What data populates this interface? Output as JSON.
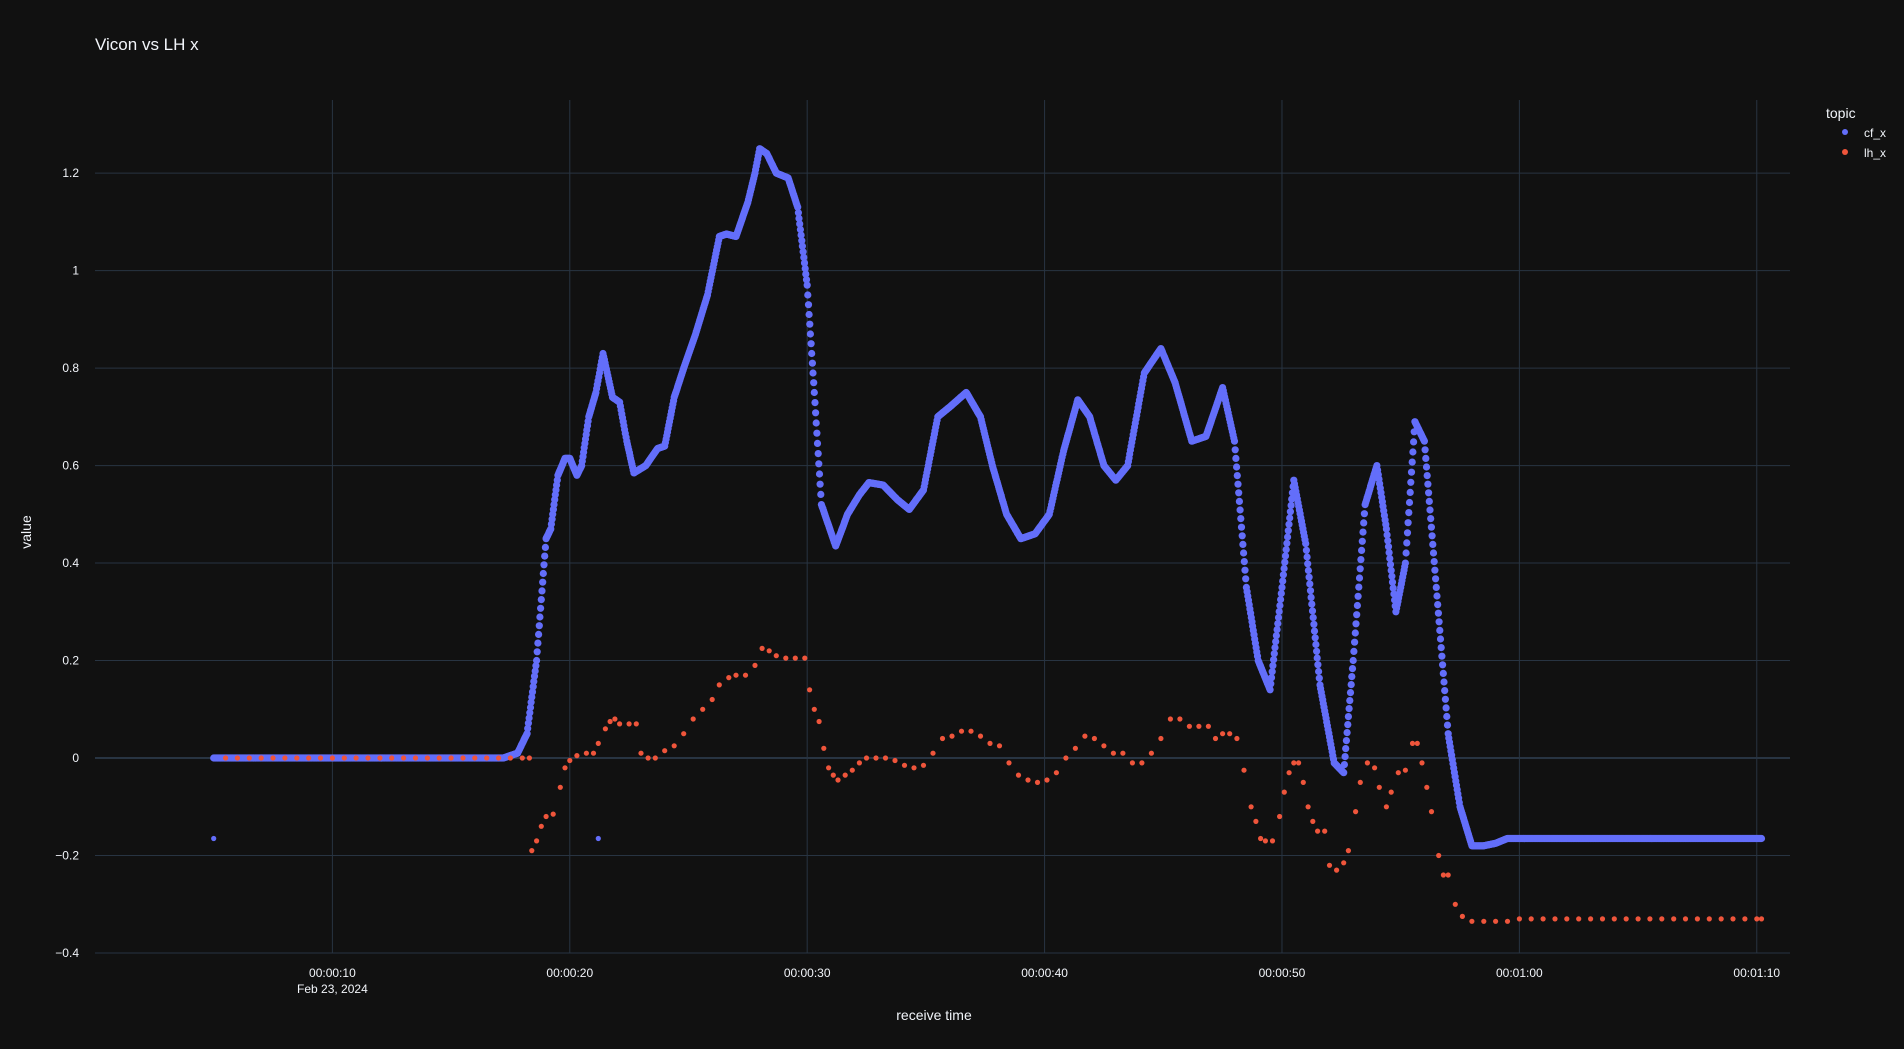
{
  "chart_data": {
    "type": "scatter",
    "title": "Vicon vs LH x",
    "xlabel": "receive time",
    "ylabel": "value",
    "x_unit": "seconds",
    "xlim": [
      0,
      71.4
    ],
    "ylim": [
      -0.4,
      1.35
    ],
    "x_ticks": [
      {
        "value": 10,
        "label": "00:00:10",
        "sublabel": "Feb 23, 2024"
      },
      {
        "value": 20,
        "label": "00:00:20",
        "sublabel": ""
      },
      {
        "value": 30,
        "label": "00:00:30",
        "sublabel": ""
      },
      {
        "value": 40,
        "label": "00:00:40",
        "sublabel": ""
      },
      {
        "value": 50,
        "label": "00:00:50",
        "sublabel": ""
      },
      {
        "value": 60,
        "label": "00:01:00",
        "sublabel": ""
      },
      {
        "value": 70,
        "label": "00:01:10",
        "sublabel": ""
      }
    ],
    "y_ticks": [
      {
        "value": -0.4,
        "label": "−0.4"
      },
      {
        "value": -0.2,
        "label": "−0.2"
      },
      {
        "value": 0,
        "label": "0"
      },
      {
        "value": 0.2,
        "label": "0.2"
      },
      {
        "value": 0.4,
        "label": "0.4"
      },
      {
        "value": 0.6,
        "label": "0.6"
      },
      {
        "value": 0.8,
        "label": "0.8"
      },
      {
        "value": 1,
        "label": "1"
      },
      {
        "value": 1.2,
        "label": "1.2"
      }
    ],
    "grid": true,
    "legend": {
      "title": "topic",
      "position": "top-right"
    },
    "series": [
      {
        "name": "cf_x",
        "color": "#636efa",
        "mode": "dense-markers",
        "points": [
          [
            5.0,
            0.0
          ],
          [
            6.0,
            0.0
          ],
          [
            8.0,
            0.0
          ],
          [
            10.0,
            0.0
          ],
          [
            12.0,
            0.0
          ],
          [
            14.0,
            0.0
          ],
          [
            16.0,
            0.0
          ],
          [
            17.2,
            0.0
          ],
          [
            17.8,
            0.01
          ],
          [
            18.2,
            0.05
          ],
          [
            18.6,
            0.2
          ],
          [
            19.0,
            0.45
          ],
          [
            19.2,
            0.47
          ],
          [
            19.5,
            0.58
          ],
          [
            19.8,
            0.615
          ],
          [
            20.0,
            0.615
          ],
          [
            20.3,
            0.58
          ],
          [
            20.5,
            0.6
          ],
          [
            20.8,
            0.7
          ],
          [
            21.1,
            0.75
          ],
          [
            21.4,
            0.83
          ],
          [
            21.8,
            0.74
          ],
          [
            22.1,
            0.73
          ],
          [
            22.4,
            0.65
          ],
          [
            22.7,
            0.585
          ],
          [
            23.2,
            0.6
          ],
          [
            23.7,
            0.635
          ],
          [
            24.0,
            0.64
          ],
          [
            24.4,
            0.74
          ],
          [
            24.8,
            0.8
          ],
          [
            25.3,
            0.87
          ],
          [
            25.8,
            0.95
          ],
          [
            26.3,
            1.07
          ],
          [
            26.6,
            1.075
          ],
          [
            27.0,
            1.07
          ],
          [
            27.5,
            1.14
          ],
          [
            27.8,
            1.2
          ],
          [
            28.0,
            1.25
          ],
          [
            28.3,
            1.24
          ],
          [
            28.7,
            1.2
          ],
          [
            29.2,
            1.19
          ],
          [
            29.6,
            1.13
          ],
          [
            30.0,
            0.97
          ],
          [
            30.3,
            0.75
          ],
          [
            30.6,
            0.52
          ],
          [
            31.2,
            0.435
          ],
          [
            31.7,
            0.5
          ],
          [
            32.2,
            0.54
          ],
          [
            32.6,
            0.565
          ],
          [
            33.2,
            0.56
          ],
          [
            33.8,
            0.53
          ],
          [
            34.3,
            0.51
          ],
          [
            34.9,
            0.55
          ],
          [
            35.5,
            0.7
          ],
          [
            36.0,
            0.72
          ],
          [
            36.7,
            0.75
          ],
          [
            37.3,
            0.7
          ],
          [
            37.8,
            0.6
          ],
          [
            38.4,
            0.5
          ],
          [
            39.0,
            0.45
          ],
          [
            39.6,
            0.46
          ],
          [
            40.2,
            0.5
          ],
          [
            40.8,
            0.63
          ],
          [
            41.4,
            0.735
          ],
          [
            41.9,
            0.7
          ],
          [
            42.5,
            0.6
          ],
          [
            43.0,
            0.57
          ],
          [
            43.5,
            0.6
          ],
          [
            44.2,
            0.79
          ],
          [
            44.9,
            0.84
          ],
          [
            45.5,
            0.77
          ],
          [
            46.2,
            0.65
          ],
          [
            46.8,
            0.66
          ],
          [
            47.5,
            0.76
          ],
          [
            48.0,
            0.65
          ],
          [
            48.5,
            0.35
          ],
          [
            49.0,
            0.2
          ],
          [
            49.5,
            0.14
          ],
          [
            50.0,
            0.35
          ],
          [
            50.5,
            0.57
          ],
          [
            51.0,
            0.44
          ],
          [
            51.6,
            0.15
          ],
          [
            52.2,
            -0.01
          ],
          [
            52.6,
            -0.03
          ],
          [
            53.0,
            0.2
          ],
          [
            53.5,
            0.52
          ],
          [
            54.0,
            0.6
          ],
          [
            54.4,
            0.47
          ],
          [
            54.8,
            0.3
          ],
          [
            55.2,
            0.4
          ],
          [
            55.6,
            0.69
          ],
          [
            56.0,
            0.65
          ],
          [
            56.5,
            0.35
          ],
          [
            57.0,
            0.05
          ],
          [
            57.5,
            -0.1
          ],
          [
            58.0,
            -0.18
          ],
          [
            58.5,
            -0.18
          ],
          [
            59.0,
            -0.175
          ],
          [
            59.5,
            -0.165
          ],
          [
            60.0,
            -0.165
          ],
          [
            62.0,
            -0.165
          ],
          [
            64.0,
            -0.165
          ],
          [
            66.0,
            -0.165
          ],
          [
            68.0,
            -0.165
          ],
          [
            70.2,
            -0.165
          ]
        ],
        "outliers": [
          [
            5.0,
            -0.165
          ],
          [
            21.2,
            -0.165
          ]
        ]
      },
      {
        "name": "lh_x",
        "color": "#ef553b",
        "mode": "markers",
        "points": [
          [
            5.5,
            0.0
          ],
          [
            6.0,
            0.0
          ],
          [
            6.5,
            0.0
          ],
          [
            7.0,
            0.0
          ],
          [
            7.5,
            0.0
          ],
          [
            8.0,
            0.0
          ],
          [
            8.5,
            0.0
          ],
          [
            9.0,
            0.0
          ],
          [
            9.5,
            0.0
          ],
          [
            10.0,
            0.0
          ],
          [
            10.5,
            0.0
          ],
          [
            11.0,
            0.0
          ],
          [
            11.5,
            0.0
          ],
          [
            12.0,
            0.0
          ],
          [
            12.5,
            0.0
          ],
          [
            13.0,
            0.0
          ],
          [
            13.5,
            0.0
          ],
          [
            14.0,
            0.0
          ],
          [
            14.5,
            0.0
          ],
          [
            15.0,
            0.0
          ],
          [
            15.5,
            0.0
          ],
          [
            16.0,
            0.0
          ],
          [
            16.5,
            0.0
          ],
          [
            17.0,
            0.0
          ],
          [
            17.5,
            0.0
          ],
          [
            18.0,
            0.0
          ],
          [
            18.3,
            0.0
          ],
          [
            18.4,
            -0.19
          ],
          [
            18.6,
            -0.17
          ],
          [
            18.8,
            -0.14
          ],
          [
            19.0,
            -0.12
          ],
          [
            19.3,
            -0.115
          ],
          [
            19.6,
            -0.06
          ],
          [
            19.8,
            -0.02
          ],
          [
            20.0,
            -0.005
          ],
          [
            20.3,
            0.005
          ],
          [
            20.7,
            0.01
          ],
          [
            21.0,
            0.01
          ],
          [
            21.2,
            0.03
          ],
          [
            21.5,
            0.06
          ],
          [
            21.7,
            0.075
          ],
          [
            21.9,
            0.08
          ],
          [
            22.1,
            0.07
          ],
          [
            22.5,
            0.07
          ],
          [
            22.8,
            0.07
          ],
          [
            23.0,
            0.01
          ],
          [
            23.3,
            0.0
          ],
          [
            23.6,
            0.0
          ],
          [
            24.0,
            0.015
          ],
          [
            24.4,
            0.025
          ],
          [
            24.8,
            0.05
          ],
          [
            25.2,
            0.08
          ],
          [
            25.6,
            0.1
          ],
          [
            26.0,
            0.12
          ],
          [
            26.3,
            0.15
          ],
          [
            26.7,
            0.165
          ],
          [
            27.0,
            0.17
          ],
          [
            27.4,
            0.17
          ],
          [
            27.8,
            0.19
          ],
          [
            28.1,
            0.225
          ],
          [
            28.4,
            0.22
          ],
          [
            28.7,
            0.21
          ],
          [
            29.1,
            0.205
          ],
          [
            29.5,
            0.205
          ],
          [
            29.9,
            0.205
          ],
          [
            30.1,
            0.14
          ],
          [
            30.3,
            0.1
          ],
          [
            30.5,
            0.075
          ],
          [
            30.7,
            0.02
          ],
          [
            30.9,
            -0.02
          ],
          [
            31.1,
            -0.035
          ],
          [
            31.3,
            -0.045
          ],
          [
            31.6,
            -0.035
          ],
          [
            31.9,
            -0.025
          ],
          [
            32.2,
            -0.01
          ],
          [
            32.5,
            0.0
          ],
          [
            32.9,
            0.0
          ],
          [
            33.3,
            0.0
          ],
          [
            33.7,
            -0.005
          ],
          [
            34.1,
            -0.015
          ],
          [
            34.5,
            -0.02
          ],
          [
            34.9,
            -0.015
          ],
          [
            35.3,
            0.01
          ],
          [
            35.7,
            0.04
          ],
          [
            36.1,
            0.045
          ],
          [
            36.5,
            0.055
          ],
          [
            36.9,
            0.055
          ],
          [
            37.3,
            0.045
          ],
          [
            37.7,
            0.03
          ],
          [
            38.1,
            0.025
          ],
          [
            38.5,
            -0.01
          ],
          [
            38.9,
            -0.035
          ],
          [
            39.3,
            -0.045
          ],
          [
            39.7,
            -0.05
          ],
          [
            40.1,
            -0.045
          ],
          [
            40.5,
            -0.03
          ],
          [
            40.9,
            0.0
          ],
          [
            41.3,
            0.02
          ],
          [
            41.7,
            0.045
          ],
          [
            42.1,
            0.04
          ],
          [
            42.5,
            0.025
          ],
          [
            42.9,
            0.01
          ],
          [
            43.3,
            0.01
          ],
          [
            43.7,
            -0.01
          ],
          [
            44.1,
            -0.01
          ],
          [
            44.5,
            0.01
          ],
          [
            44.9,
            0.04
          ],
          [
            45.3,
            0.08
          ],
          [
            45.7,
            0.08
          ],
          [
            46.1,
            0.065
          ],
          [
            46.5,
            0.065
          ],
          [
            46.9,
            0.065
          ],
          [
            47.2,
            0.04
          ],
          [
            47.5,
            0.05
          ],
          [
            47.8,
            0.05
          ],
          [
            48.1,
            0.04
          ],
          [
            48.4,
            -0.025
          ],
          [
            48.7,
            -0.1
          ],
          [
            48.9,
            -0.13
          ],
          [
            49.1,
            -0.165
          ],
          [
            49.3,
            -0.17
          ],
          [
            49.6,
            -0.17
          ],
          [
            49.9,
            -0.12
          ],
          [
            50.1,
            -0.07
          ],
          [
            50.3,
            -0.03
          ],
          [
            50.5,
            -0.01
          ],
          [
            50.7,
            -0.01
          ],
          [
            50.9,
            -0.05
          ],
          [
            51.1,
            -0.1
          ],
          [
            51.3,
            -0.13
          ],
          [
            51.5,
            -0.15
          ],
          [
            51.8,
            -0.15
          ],
          [
            52.0,
            -0.22
          ],
          [
            52.3,
            -0.23
          ],
          [
            52.6,
            -0.215
          ],
          [
            52.8,
            -0.19
          ],
          [
            53.1,
            -0.11
          ],
          [
            53.3,
            -0.05
          ],
          [
            53.6,
            -0.01
          ],
          [
            53.9,
            -0.02
          ],
          [
            54.1,
            -0.06
          ],
          [
            54.4,
            -0.1
          ],
          [
            54.6,
            -0.07
          ],
          [
            54.9,
            -0.03
          ],
          [
            55.2,
            -0.025
          ],
          [
            55.5,
            0.03
          ],
          [
            55.7,
            0.03
          ],
          [
            55.9,
            -0.01
          ],
          [
            56.1,
            -0.06
          ],
          [
            56.3,
            -0.11
          ],
          [
            56.6,
            -0.2
          ],
          [
            56.8,
            -0.24
          ],
          [
            57.0,
            -0.24
          ],
          [
            57.3,
            -0.3
          ],
          [
            57.6,
            -0.325
          ],
          [
            58.0,
            -0.335
          ],
          [
            58.5,
            -0.335
          ],
          [
            59.0,
            -0.335
          ],
          [
            59.5,
            -0.335
          ],
          [
            60.0,
            -0.33
          ],
          [
            60.5,
            -0.33
          ],
          [
            61.0,
            -0.33
          ],
          [
            61.5,
            -0.33
          ],
          [
            62.0,
            -0.33
          ],
          [
            62.5,
            -0.33
          ],
          [
            63.0,
            -0.33
          ],
          [
            63.5,
            -0.33
          ],
          [
            64.0,
            -0.33
          ],
          [
            64.5,
            -0.33
          ],
          [
            65.0,
            -0.33
          ],
          [
            65.5,
            -0.33
          ],
          [
            66.0,
            -0.33
          ],
          [
            66.5,
            -0.33
          ],
          [
            67.0,
            -0.33
          ],
          [
            67.5,
            -0.33
          ],
          [
            68.0,
            -0.33
          ],
          [
            68.5,
            -0.33
          ],
          [
            69.0,
            -0.33
          ],
          [
            69.5,
            -0.33
          ],
          [
            70.0,
            -0.33
          ],
          [
            70.2,
            -0.33
          ]
        ],
        "outliers": []
      }
    ]
  }
}
